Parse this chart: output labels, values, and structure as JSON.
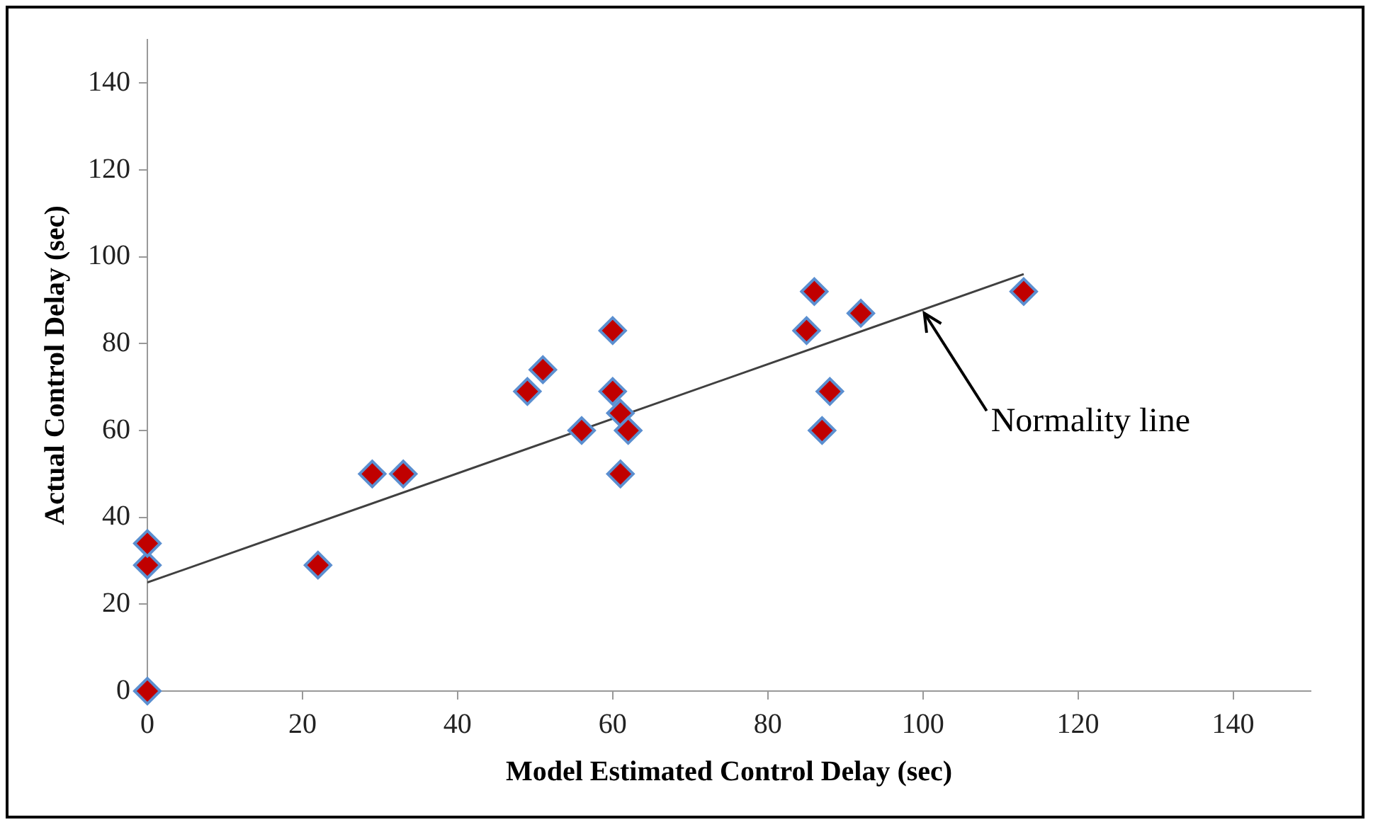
{
  "chart_data": {
    "type": "scatter",
    "xlabel": "Model Estimated Control Delay (sec)",
    "ylabel": "Actual Control Delay (sec)",
    "xlim": [
      0,
      150
    ],
    "xticks": [
      0,
      20,
      40,
      60,
      80,
      100,
      120,
      140
    ],
    "ylim": [
      0,
      150
    ],
    "yticks": [
      0,
      20,
      40,
      60,
      80,
      100,
      120,
      140
    ],
    "grid": false,
    "legend": false,
    "marker": "diamond",
    "series": [
      {
        "color": "#c00000",
        "x": [
          0,
          0,
          0,
          22,
          29,
          33,
          49,
          51,
          56,
          60,
          60,
          61,
          62,
          61,
          85,
          86,
          92,
          88,
          87,
          113
        ],
        "values": [
          0,
          29,
          34,
          29,
          50,
          50,
          69,
          74,
          60,
          83,
          69,
          64,
          60,
          50,
          83,
          92,
          87,
          69,
          60,
          92
        ]
      },
      {
        "type": "line",
        "color": "#404040",
        "marker": "none",
        "line_style": "solid",
        "x": [
          0,
          113
        ],
        "values": [
          25,
          96
        ]
      }
    ],
    "annotations": [
      {
        "text": "Normality line",
        "x": 100,
        "y": 88
      }
    ]
  }
}
